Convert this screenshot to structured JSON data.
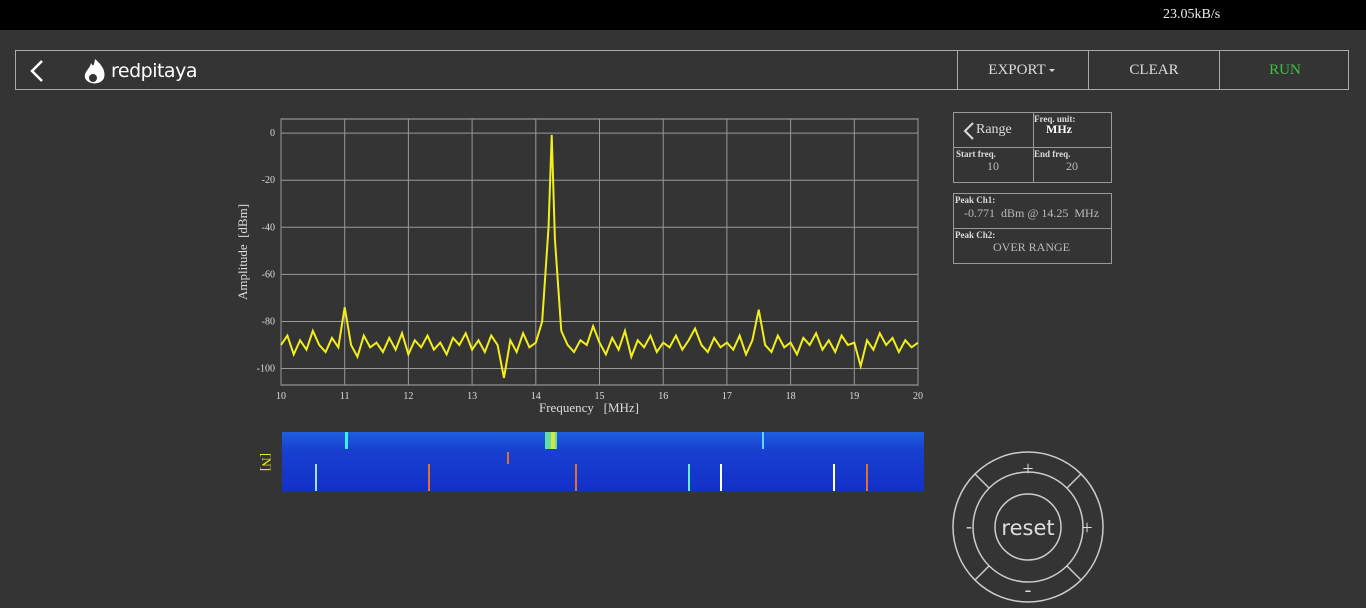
{
  "status": {
    "speed": "23.05kB/s"
  },
  "header": {
    "logo": "redpitaya",
    "buttons": [
      "EXPORT",
      "CLEAR",
      "RUN"
    ]
  },
  "range_panel": {
    "title": "Range",
    "unit_label": "Freq. unit:",
    "unit": "MHz",
    "start_label": "Start freq.",
    "start": "10",
    "end_label": "End freq.",
    "end": "20"
  },
  "peak_panel": {
    "ch1_label": "Peak Ch1:",
    "ch1": "-0.771  dBm @ 14.25  MHz",
    "ch2_label": "Peak Ch2:",
    "ch2": "OVER RANGE"
  },
  "waterfall": {
    "label": "[N]"
  },
  "control": {
    "up": "+",
    "left": "-",
    "right": "+",
    "down": "-",
    "center": "reset"
  },
  "chart_data": {
    "type": "line",
    "x_label": "Frequency   [MHz]",
    "y_label": "Amplitude  [dBm]",
    "color": "#f2ee1c",
    "grid": true,
    "xlim": [
      10,
      20
    ],
    "ylim": [
      -107,
      6
    ],
    "xticks": [
      10,
      11,
      12,
      13,
      14,
      15,
      16,
      17,
      18,
      19,
      20
    ],
    "yticks": [
      0,
      -20,
      -40,
      -60,
      -80,
      -100
    ],
    "x": [
      10.0,
      10.1,
      10.2,
      10.3,
      10.4,
      10.5,
      10.6,
      10.7,
      10.8,
      10.9,
      11.0,
      11.1,
      11.2,
      11.3,
      11.4,
      11.5,
      11.6,
      11.7,
      11.8,
      11.9,
      12.0,
      12.1,
      12.2,
      12.3,
      12.4,
      12.5,
      12.6,
      12.7,
      12.8,
      12.9,
      13.0,
      13.1,
      13.2,
      13.3,
      13.4,
      13.5,
      13.6,
      13.7,
      13.8,
      13.9,
      14.0,
      14.1,
      14.2,
      14.25,
      14.3,
      14.4,
      14.5,
      14.6,
      14.7,
      14.8,
      14.9,
      15.0,
      15.1,
      15.2,
      15.3,
      15.4,
      15.5,
      15.6,
      15.7,
      15.8,
      15.9,
      16.0,
      16.1,
      16.2,
      16.3,
      16.4,
      16.5,
      16.6,
      16.7,
      16.8,
      16.9,
      17.0,
      17.1,
      17.2,
      17.3,
      17.4,
      17.5,
      17.6,
      17.7,
      17.8,
      17.9,
      18.0,
      18.1,
      18.2,
      18.3,
      18.4,
      18.5,
      18.6,
      18.7,
      18.8,
      18.9,
      19.0,
      19.1,
      19.2,
      19.3,
      19.4,
      19.5,
      19.6,
      19.7,
      19.8,
      19.9,
      20.0
    ],
    "values": [
      -90,
      -86,
      -94,
      -88,
      -92,
      -84,
      -90,
      -93,
      -87,
      -91,
      -74,
      -90,
      -95,
      -86,
      -91,
      -89,
      -93,
      -87,
      -92,
      -85,
      -94,
      -88,
      -91,
      -86,
      -92,
      -89,
      -94,
      -87,
      -90,
      -85,
      -92,
      -88,
      -93,
      -86,
      -90,
      -104,
      -88,
      -93,
      -85,
      -91,
      -89,
      -80,
      -40,
      -0.771,
      -45,
      -84,
      -90,
      -93,
      -88,
      -90,
      -82,
      -89,
      -94,
      -87,
      -92,
      -84,
      -95,
      -88,
      -91,
      -86,
      -93,
      -89,
      -91,
      -86,
      -92,
      -88,
      -83,
      -90,
      -93,
      -87,
      -91,
      -89,
      -92,
      -86,
      -94,
      -88,
      -75,
      -90,
      -93,
      -86,
      -91,
      -89,
      -94,
      -87,
      -90,
      -85,
      -92,
      -88,
      -93,
      -86,
      -90,
      -89,
      -99,
      -88,
      -92,
      -85,
      -90,
      -87,
      -93,
      -88,
      -91,
      -89
    ]
  }
}
